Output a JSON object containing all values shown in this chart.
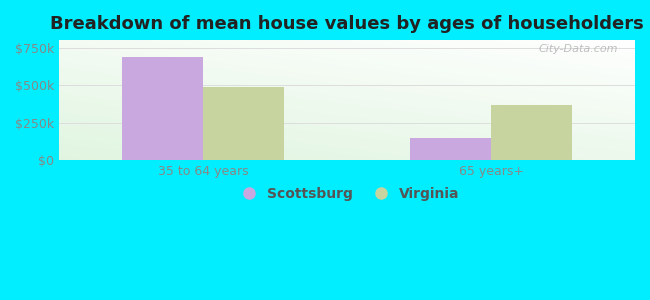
{
  "title": "Breakdown of mean house values by ages of householders",
  "categories": [
    "35 to 64 years",
    "65 years+"
  ],
  "scottsburg_values": [
    690000,
    150000
  ],
  "virginia_values": [
    487000,
    370000
  ],
  "scottsburg_color": "#c9a8e0",
  "virginia_color": "#c8d4a0",
  "background_color": "#00eeff",
  "ylim": [
    0,
    800000
  ],
  "yticks": [
    0,
    250000,
    500000,
    750000
  ],
  "ytick_labels": [
    "$0",
    "$250k",
    "$500k",
    "$750k"
  ],
  "bar_width": 0.28,
  "legend_labels": [
    "Scottsburg",
    "Virginia"
  ],
  "title_fontsize": 13,
  "tick_fontsize": 9,
  "legend_fontsize": 10,
  "watermark": "City-Data.com"
}
